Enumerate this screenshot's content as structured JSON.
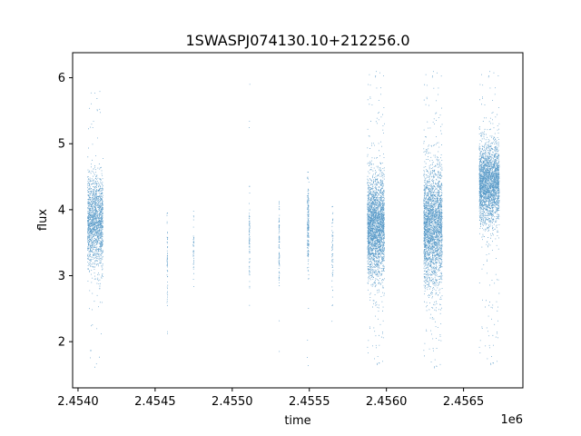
{
  "chart_data": {
    "type": "scatter",
    "title": "1SWASPJ074130.10+212256.0",
    "xlabel": "time",
    "ylabel": "flux",
    "x_offset_label": "1e6",
    "xlim": [
      2453965,
      2456885
    ],
    "ylim": [
      1.3,
      6.38
    ],
    "x_ticks": [
      2454000,
      2454500,
      2455000,
      2455500,
      2456000,
      2456500
    ],
    "x_tick_labels": [
      "2.4540",
      "2.4545",
      "2.4550",
      "2.4555",
      "2.4560",
      "2.4565"
    ],
    "y_ticks": [
      2,
      3,
      4,
      5,
      6
    ],
    "y_tick_labels": [
      "2",
      "3",
      "4",
      "5",
      "6"
    ],
    "marker_color": "#1f77b4",
    "grid": false,
    "legend": "none",
    "clusters": [
      {
        "x_start": 2454060,
        "x_end": 2454160,
        "median": 3.8,
        "spread": 0.35,
        "outlier_min": 1.6,
        "outlier_max": 5.9,
        "n": 1600
      },
      {
        "x_start": 2454575,
        "x_end": 2454580,
        "median": 3.3,
        "spread": 0.35,
        "outlier_min": 1.9,
        "outlier_max": 3.95,
        "n": 60
      },
      {
        "x_start": 2454745,
        "x_end": 2454750,
        "median": 3.45,
        "spread": 0.25,
        "outlier_min": 2.7,
        "outlier_max": 4.0,
        "n": 40
      },
      {
        "x_start": 2455108,
        "x_end": 2455112,
        "median": 3.6,
        "spread": 0.3,
        "outlier_min": 2.3,
        "outlier_max": 6.0,
        "n": 80
      },
      {
        "x_start": 2455300,
        "x_end": 2455305,
        "median": 3.5,
        "spread": 0.35,
        "outlier_min": 1.8,
        "outlier_max": 4.8,
        "n": 90
      },
      {
        "x_start": 2455485,
        "x_end": 2455495,
        "median": 3.75,
        "spread": 0.3,
        "outlier_min": 1.6,
        "outlier_max": 4.8,
        "n": 200
      },
      {
        "x_start": 2455645,
        "x_end": 2455652,
        "median": 3.35,
        "spread": 0.3,
        "outlier_min": 1.6,
        "outlier_max": 4.1,
        "n": 60
      },
      {
        "x_start": 2455875,
        "x_end": 2455985,
        "median": 3.75,
        "spread": 0.38,
        "outlier_min": 1.6,
        "outlier_max": 6.15,
        "n": 3000
      },
      {
        "x_start": 2456240,
        "x_end": 2456360,
        "median": 3.75,
        "spread": 0.45,
        "outlier_min": 1.55,
        "outlier_max": 6.15,
        "n": 3200
      },
      {
        "x_start": 2456600,
        "x_end": 2456730,
        "median": 4.4,
        "spread": 0.3,
        "outlier_min": 1.6,
        "outlier_max": 6.15,
        "n": 2800
      }
    ]
  }
}
